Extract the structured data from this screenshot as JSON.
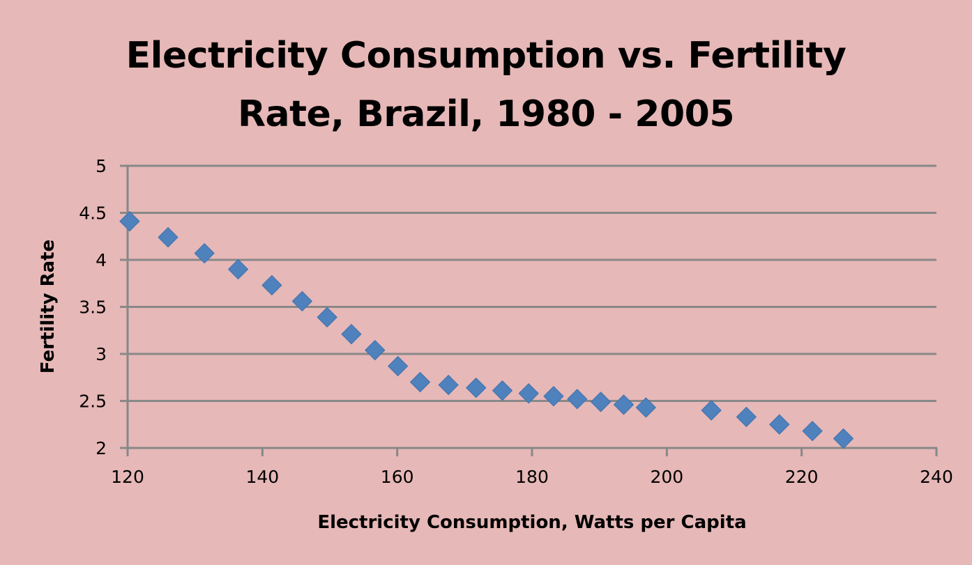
{
  "chart_data": {
    "type": "scatter",
    "title_lines": [
      "Electricity Consumption vs. Fertility",
      "Rate, Brazil, 1980 - 2005"
    ],
    "title": "Electricity Consumption vs. Fertility Rate, Brazil, 1980 - 2005",
    "xlabel": "Electricity Consumption, Watts per Capita",
    "ylabel": "Fertility Rate",
    "xlim": [
      120,
      240
    ],
    "ylim": [
      2,
      5
    ],
    "xticks": [
      120,
      140,
      160,
      180,
      200,
      220,
      240
    ],
    "yticks": [
      2,
      2.5,
      3,
      3.5,
      4,
      4.5,
      5
    ],
    "xtick_labels": [
      "120",
      "140",
      "160",
      "180",
      "200",
      "220",
      "240"
    ],
    "ytick_labels": [
      "2",
      "2.5",
      "3",
      "3.5",
      "4",
      "4.5",
      "5"
    ],
    "grid": "horizontal",
    "legend": "none",
    "marker": "diamond",
    "colors": {
      "background": "#e6b8b7",
      "marker": "#4f81bd",
      "grid": "#888888",
      "text": "#000000"
    },
    "series": [
      {
        "name": "Brazil",
        "x": [
          120.3,
          126.0,
          131.4,
          136.4,
          141.4,
          145.9,
          149.6,
          153.2,
          156.7,
          160.1,
          163.4,
          167.6,
          171.7,
          175.6,
          179.5,
          183.2,
          186.7,
          190.2,
          193.6,
          196.9,
          206.6,
          211.8,
          216.7,
          221.6,
          226.2
        ],
        "y": [
          4.41,
          4.24,
          4.07,
          3.9,
          3.73,
          3.56,
          3.39,
          3.21,
          3.04,
          2.87,
          2.7,
          2.67,
          2.64,
          2.61,
          2.58,
          2.55,
          2.52,
          2.49,
          2.46,
          2.43,
          2.4,
          2.33,
          2.25,
          2.18,
          2.1
        ]
      }
    ]
  }
}
